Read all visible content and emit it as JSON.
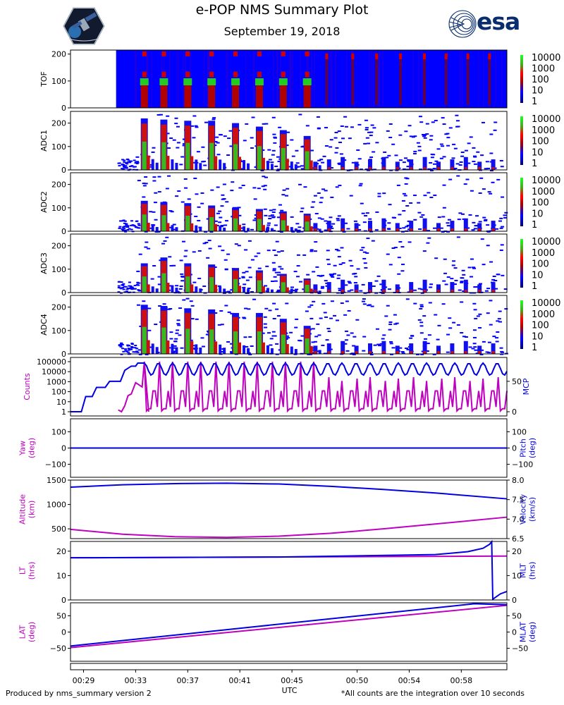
{
  "page": {
    "title": "e-POP NMS Summary Plot",
    "subtitle": "September 19, 2018",
    "footer_left": "Produced by nms_summary version 2",
    "footer_right": "*All counts are the integration over 10 seconds",
    "xlabel": "UTC",
    "logo_right_text": "esa"
  },
  "colors": {
    "magenta": "#bf00bf",
    "blue": "#0000e0",
    "heat_bg": "#0000ff",
    "red": "#d40000",
    "green": "#22cc22"
  },
  "chart_data": [
    {
      "type": "heatmap",
      "name": "TOF",
      "ylabel": "TOF",
      "yticks": [
        0,
        100,
        200
      ],
      "ylim": [
        0,
        215
      ],
      "colorbar": [
        "10000",
        "1000",
        "100",
        "10",
        "1"
      ],
      "data_start_utc": "00:31:30",
      "peak_times_utc": [
        "00:33:40",
        "00:35:10",
        "00:37:00",
        "00:38:50",
        "00:40:40",
        "00:42:30",
        "00:44:20",
        "00:46:10"
      ]
    },
    {
      "type": "heatmap",
      "name": "ADC1",
      "ylabel": "ADC1",
      "yticks": [
        0,
        100,
        200
      ],
      "ylim": [
        0,
        250
      ],
      "colorbar": [
        "10000",
        "1000",
        "100",
        "10",
        "1"
      ],
      "peak_heights": [
        220,
        215,
        210,
        210,
        200,
        185,
        170,
        145
      ]
    },
    {
      "type": "heatmap",
      "name": "ADC2",
      "ylabel": "ADC2",
      "yticks": [
        0,
        100,
        200
      ],
      "ylim": [
        0,
        250
      ],
      "colorbar": [
        "10000",
        "1000",
        "100",
        "10",
        "1"
      ],
      "peak_heights": [
        130,
        125,
        120,
        110,
        100,
        95,
        85,
        75
      ]
    },
    {
      "type": "heatmap",
      "name": "ADC3",
      "ylabel": "ADC3",
      "yticks": [
        0,
        100,
        200
      ],
      "ylim": [
        0,
        250
      ],
      "colorbar": [
        "10000",
        "1000",
        "100",
        "10",
        "1"
      ],
      "peak_heights": [
        125,
        150,
        125,
        120,
        105,
        95,
        80,
        60
      ]
    },
    {
      "type": "heatmap",
      "name": "ADC4",
      "ylabel": "ADC4",
      "yticks": [
        0,
        100,
        200
      ],
      "ylim": [
        0,
        250
      ],
      "colorbar": [
        "10000",
        "1000",
        "100",
        "10",
        "1"
      ],
      "peak_heights": [
        210,
        205,
        195,
        190,
        175,
        175,
        150,
        120
      ]
    },
    {
      "type": "line",
      "name": "counts-mcp",
      "left_label": "Counts",
      "right_label": "MCP",
      "left_scale": "log",
      "left_ticks": [
        "100000",
        "10000",
        "1000",
        "100",
        "10",
        "1"
      ],
      "right_ticks": [
        "50",
        "0"
      ],
      "series": [
        {
          "name": "Counts",
          "color": "magenta",
          "axis": "left",
          "points": [
            [
              "00:31:40",
              1.5
            ],
            [
              "00:31:55",
              0.8
            ],
            [
              "00:32:10",
              4
            ],
            [
              "00:32:25",
              40
            ],
            [
              "00:32:40",
              60
            ],
            [
              "00:33:00",
              800
            ],
            [
              "00:33:30",
              300
            ],
            [
              "00:33:40",
              100000
            ],
            [
              "00:34:00",
              1
            ]
          ]
        },
        {
          "name": "MCP",
          "color": "blue",
          "axis": "right",
          "points": [
            [
              "00:28:00",
              0
            ],
            [
              "00:28:50",
              0
            ],
            [
              "00:29:10",
              25
            ],
            [
              "00:29:40",
              25
            ],
            [
              "00:30:00",
              40
            ],
            [
              "00:30:40",
              40
            ],
            [
              "00:31:00",
              50
            ],
            [
              "00:31:50",
              50
            ],
            [
              "00:32:10",
              68
            ],
            [
              "00:32:40",
              75
            ],
            [
              "00:33:00",
              75
            ],
            [
              "00:33:10",
              80
            ]
          ]
        }
      ]
    },
    {
      "type": "line",
      "name": "yaw-pitch",
      "left_label": [
        "Yaw",
        "(deg)"
      ],
      "right_label": [
        "Pitch",
        "(deg)"
      ],
      "left_ticks": [
        "100",
        "0",
        "−100"
      ],
      "right_ticks": [
        "100",
        "0",
        "−100"
      ],
      "ylim": [
        -180,
        180
      ],
      "series": [
        {
          "name": "Yaw",
          "color": "magenta",
          "axis": "left",
          "constant": 0
        },
        {
          "name": "Pitch",
          "color": "blue",
          "axis": "right",
          "constant": 0
        }
      ]
    },
    {
      "type": "line",
      "name": "altitude-velocity",
      "left_label": [
        "Altitude",
        "(km)"
      ],
      "right_label": [
        "Velocity",
        "(km/s)"
      ],
      "left_ticks": [
        "1500",
        "1000",
        "500"
      ],
      "right_ticks": [
        "8.0",
        "7.5",
        "7.0",
        "6.5"
      ],
      "left_ylim": [
        300,
        1500
      ],
      "right_ylim": [
        6.5,
        8.0
      ],
      "series": [
        {
          "name": "Altitude",
          "color": "magenta",
          "axis": "left",
          "points": [
            [
              "00:28:00",
              490
            ],
            [
              "00:32:00",
              390
            ],
            [
              "00:36:00",
              340
            ],
            [
              "00:40:00",
              325
            ],
            [
              "00:44:00",
              350
            ],
            [
              "00:48:00",
              410
            ],
            [
              "00:52:00",
              500
            ],
            [
              "00:56:00",
              600
            ],
            [
              "01:01:30",
              740
            ]
          ]
        },
        {
          "name": "Velocity",
          "color": "blue",
          "axis": "right",
          "points": [
            [
              "00:28:00",
              7.82
            ],
            [
              "00:32:00",
              7.88
            ],
            [
              "00:36:00",
              7.91
            ],
            [
              "00:40:00",
              7.92
            ],
            [
              "00:44:00",
              7.9
            ],
            [
              "00:48:00",
              7.84
            ],
            [
              "00:52:00",
              7.76
            ],
            [
              "00:56:00",
              7.67
            ],
            [
              "01:01:30",
              7.52
            ]
          ]
        }
      ]
    },
    {
      "type": "line",
      "name": "lt-mlt",
      "left_label": [
        "LT",
        "(hrs)"
      ],
      "right_label": [
        "MLT",
        "(hrs)"
      ],
      "left_ticks": [
        "20",
        "10",
        "0"
      ],
      "right_ticks": [
        "20",
        "10",
        "0"
      ],
      "ylim": [
        0,
        24
      ],
      "series": [
        {
          "name": "LT",
          "color": "magenta",
          "axis": "left",
          "points": [
            [
              "00:28:00",
              17.3
            ],
            [
              "01:01:30",
              18
            ]
          ]
        },
        {
          "name": "MLT",
          "color": "blue",
          "axis": "right",
          "points": [
            [
              "00:28:00",
              17.3
            ],
            [
              "00:44:00",
              17.6
            ],
            [
              "00:56:00",
              18.6
            ],
            [
              "00:58:30",
              19.8
            ],
            [
              "00:59:40",
              21.2
            ],
            [
              "01:00:10",
              22.8
            ],
            [
              "01:00:20",
              23.9
            ],
            [
              "01:00:25",
              0.3
            ],
            [
              "01:01:00",
              2.5
            ],
            [
              "01:01:30",
              3.5
            ]
          ]
        }
      ]
    },
    {
      "type": "line",
      "name": "lat-mlat",
      "left_label": [
        "LAT",
        "(deg)"
      ],
      "right_label": [
        "MLAT",
        "(deg)"
      ],
      "left_ticks": [
        "50",
        "0",
        "−50"
      ],
      "right_ticks": [
        "50",
        "0",
        "−50"
      ],
      "ylim": [
        -90,
        90
      ],
      "series": [
        {
          "name": "LAT",
          "color": "magenta",
          "axis": "left",
          "points": [
            [
              "00:28:00",
              -48
            ],
            [
              "01:01:30",
              82
            ]
          ]
        },
        {
          "name": "MLAT",
          "color": "blue",
          "axis": "right",
          "points": [
            [
              "00:28:00",
              -43
            ],
            [
              "00:59:00",
              87
            ],
            [
              "01:01:30",
              84
            ]
          ]
        }
      ]
    }
  ],
  "x_axis": {
    "tick_labels": [
      "00:29",
      "00:33",
      "00:37",
      "00:41",
      "00:45",
      "00:50",
      "00:54",
      "00:58"
    ],
    "range_utc": [
      "00:28:00",
      "01:01:30"
    ]
  }
}
